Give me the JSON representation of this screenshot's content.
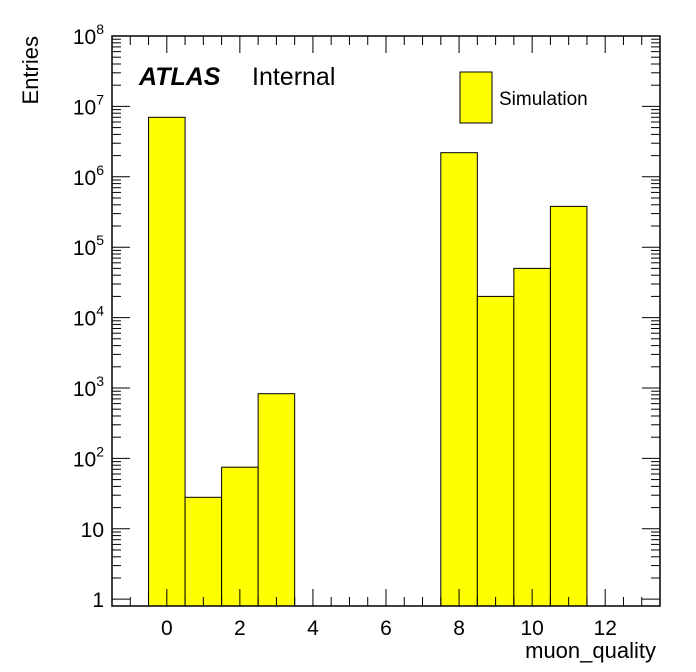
{
  "chart_data": {
    "type": "bar",
    "histogram": true,
    "bins": [
      {
        "center": 0,
        "value": 7000000
      },
      {
        "center": 1,
        "value": 28
      },
      {
        "center": 2,
        "value": 75
      },
      {
        "center": 3,
        "value": 830
      },
      {
        "center": 4,
        "value": 0
      },
      {
        "center": 5,
        "value": 0
      },
      {
        "center": 6,
        "value": 0
      },
      {
        "center": 7,
        "value": 0
      },
      {
        "center": 8,
        "value": 2200000
      },
      {
        "center": 9,
        "value": 20000
      },
      {
        "center": 10,
        "value": 50000
      },
      {
        "center": 11,
        "value": 380000
      },
      {
        "center": 12,
        "value": 0
      }
    ],
    "bin_width": 1,
    "xlabel": "muon_quality",
    "ylabel": "Entries",
    "xlim": [
      -1.5,
      13.5
    ],
    "ylim": [
      0.8,
      100000000
    ],
    "y_scale": "log",
    "x_ticks": [
      "0",
      "2",
      "4",
      "6",
      "8",
      "10",
      "12"
    ],
    "x_tick_values": [
      0,
      2,
      4,
      6,
      8,
      10,
      12
    ],
    "y_ticks": [
      {
        "value": 1,
        "base": "1",
        "exp": ""
      },
      {
        "value": 10,
        "base": "10",
        "exp": ""
      },
      {
        "value": 100,
        "base": "10",
        "exp": "2"
      },
      {
        "value": 1000,
        "base": "10",
        "exp": "3"
      },
      {
        "value": 10000,
        "base": "10",
        "exp": "4"
      },
      {
        "value": 100000,
        "base": "10",
        "exp": "5"
      },
      {
        "value": 1000000,
        "base": "10",
        "exp": "6"
      },
      {
        "value": 10000000,
        "base": "10",
        "exp": "7"
      },
      {
        "value": 100000000,
        "base": "10",
        "exp": "8"
      }
    ],
    "legend": [
      {
        "label": "Simulation",
        "color": "#ffff00"
      }
    ],
    "legend_position": "top-right",
    "fill_color": "#ffff00",
    "line_color": "#000000",
    "grid": false
  },
  "annotations": {
    "atlas": "ATLAS",
    "internal": "Internal"
  }
}
